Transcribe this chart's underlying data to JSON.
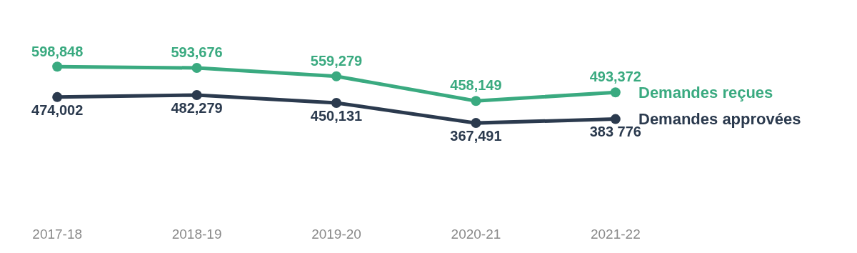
{
  "chart_data": {
    "type": "line",
    "categories": [
      "2017-18",
      "2018-19",
      "2019-20",
      "2020-21",
      "2021-22"
    ],
    "legend": false,
    "grid": false,
    "marker": "circle",
    "line_style": "solid",
    "tick_labels": "x",
    "series": [
      {
        "name": "Demandes reçues",
        "color": "#3aaa80",
        "values": [
          598848,
          593676,
          559279,
          458149,
          493372
        ],
        "value_labels": [
          "598,848",
          "593,676",
          "559,279",
          "458,149",
          "493,372"
        ]
      },
      {
        "name": "Demandes approvées",
        "color": "#2b3a4e",
        "values": [
          474002,
          482279,
          450131,
          367491,
          383776
        ],
        "value_labels": [
          "474,002",
          "482,279",
          "450,131",
          "367,491",
          "383 776"
        ]
      }
    ]
  }
}
